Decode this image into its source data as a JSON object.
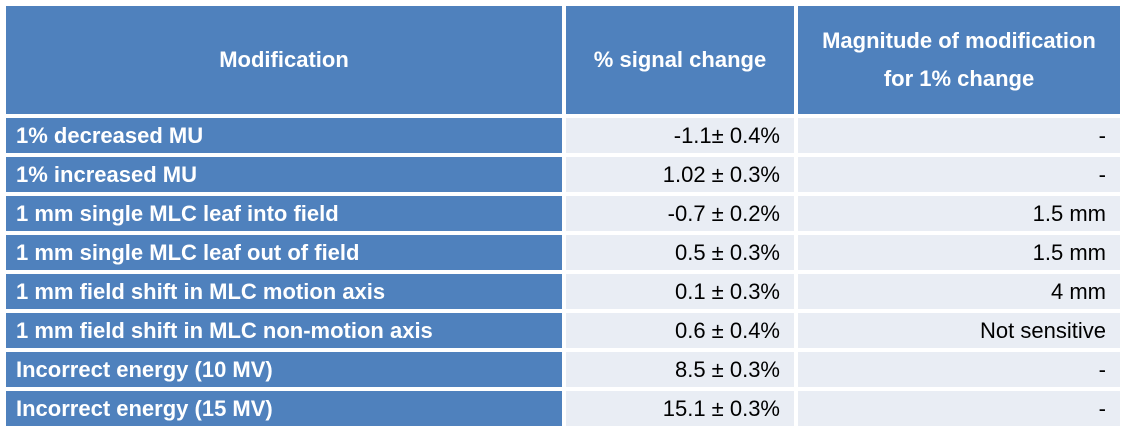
{
  "table": {
    "headers": [
      "Modification",
      "% signal change",
      "Magnitude of modification for 1% change"
    ],
    "rows": [
      {
        "modification": "1% decreased MU",
        "signal_change": "-1.1± 0.4%",
        "magnitude": "-"
      },
      {
        "modification": "1% increased MU",
        "signal_change": "1.02 ± 0.3%",
        "magnitude": "-"
      },
      {
        "modification": "1 mm single MLC leaf into field",
        "signal_change": "-0.7 ± 0.2%",
        "magnitude": "1.5 mm"
      },
      {
        "modification": "1 mm single MLC leaf out of field",
        "signal_change": "0.5 ± 0.3%",
        "magnitude": "1.5 mm"
      },
      {
        "modification": "1 mm field shift in MLC motion axis",
        "signal_change": "0.1 ± 0.3%",
        "magnitude": "4 mm"
      },
      {
        "modification": "1 mm field shift in MLC non-motion axis",
        "signal_change": "0.6 ± 0.4%",
        "magnitude": "Not sensitive"
      },
      {
        "modification": "Incorrect energy (10 MV)",
        "signal_change": "8.5 ± 0.3%",
        "magnitude": "-"
      },
      {
        "modification": "Incorrect energy (15 MV)",
        "signal_change": "15.1 ± 0.3%",
        "magnitude": "-"
      }
    ]
  },
  "colors": {
    "header_bg": "#4f81bd",
    "cell_bg": "#e9edf4",
    "header_text": "#ffffff"
  }
}
